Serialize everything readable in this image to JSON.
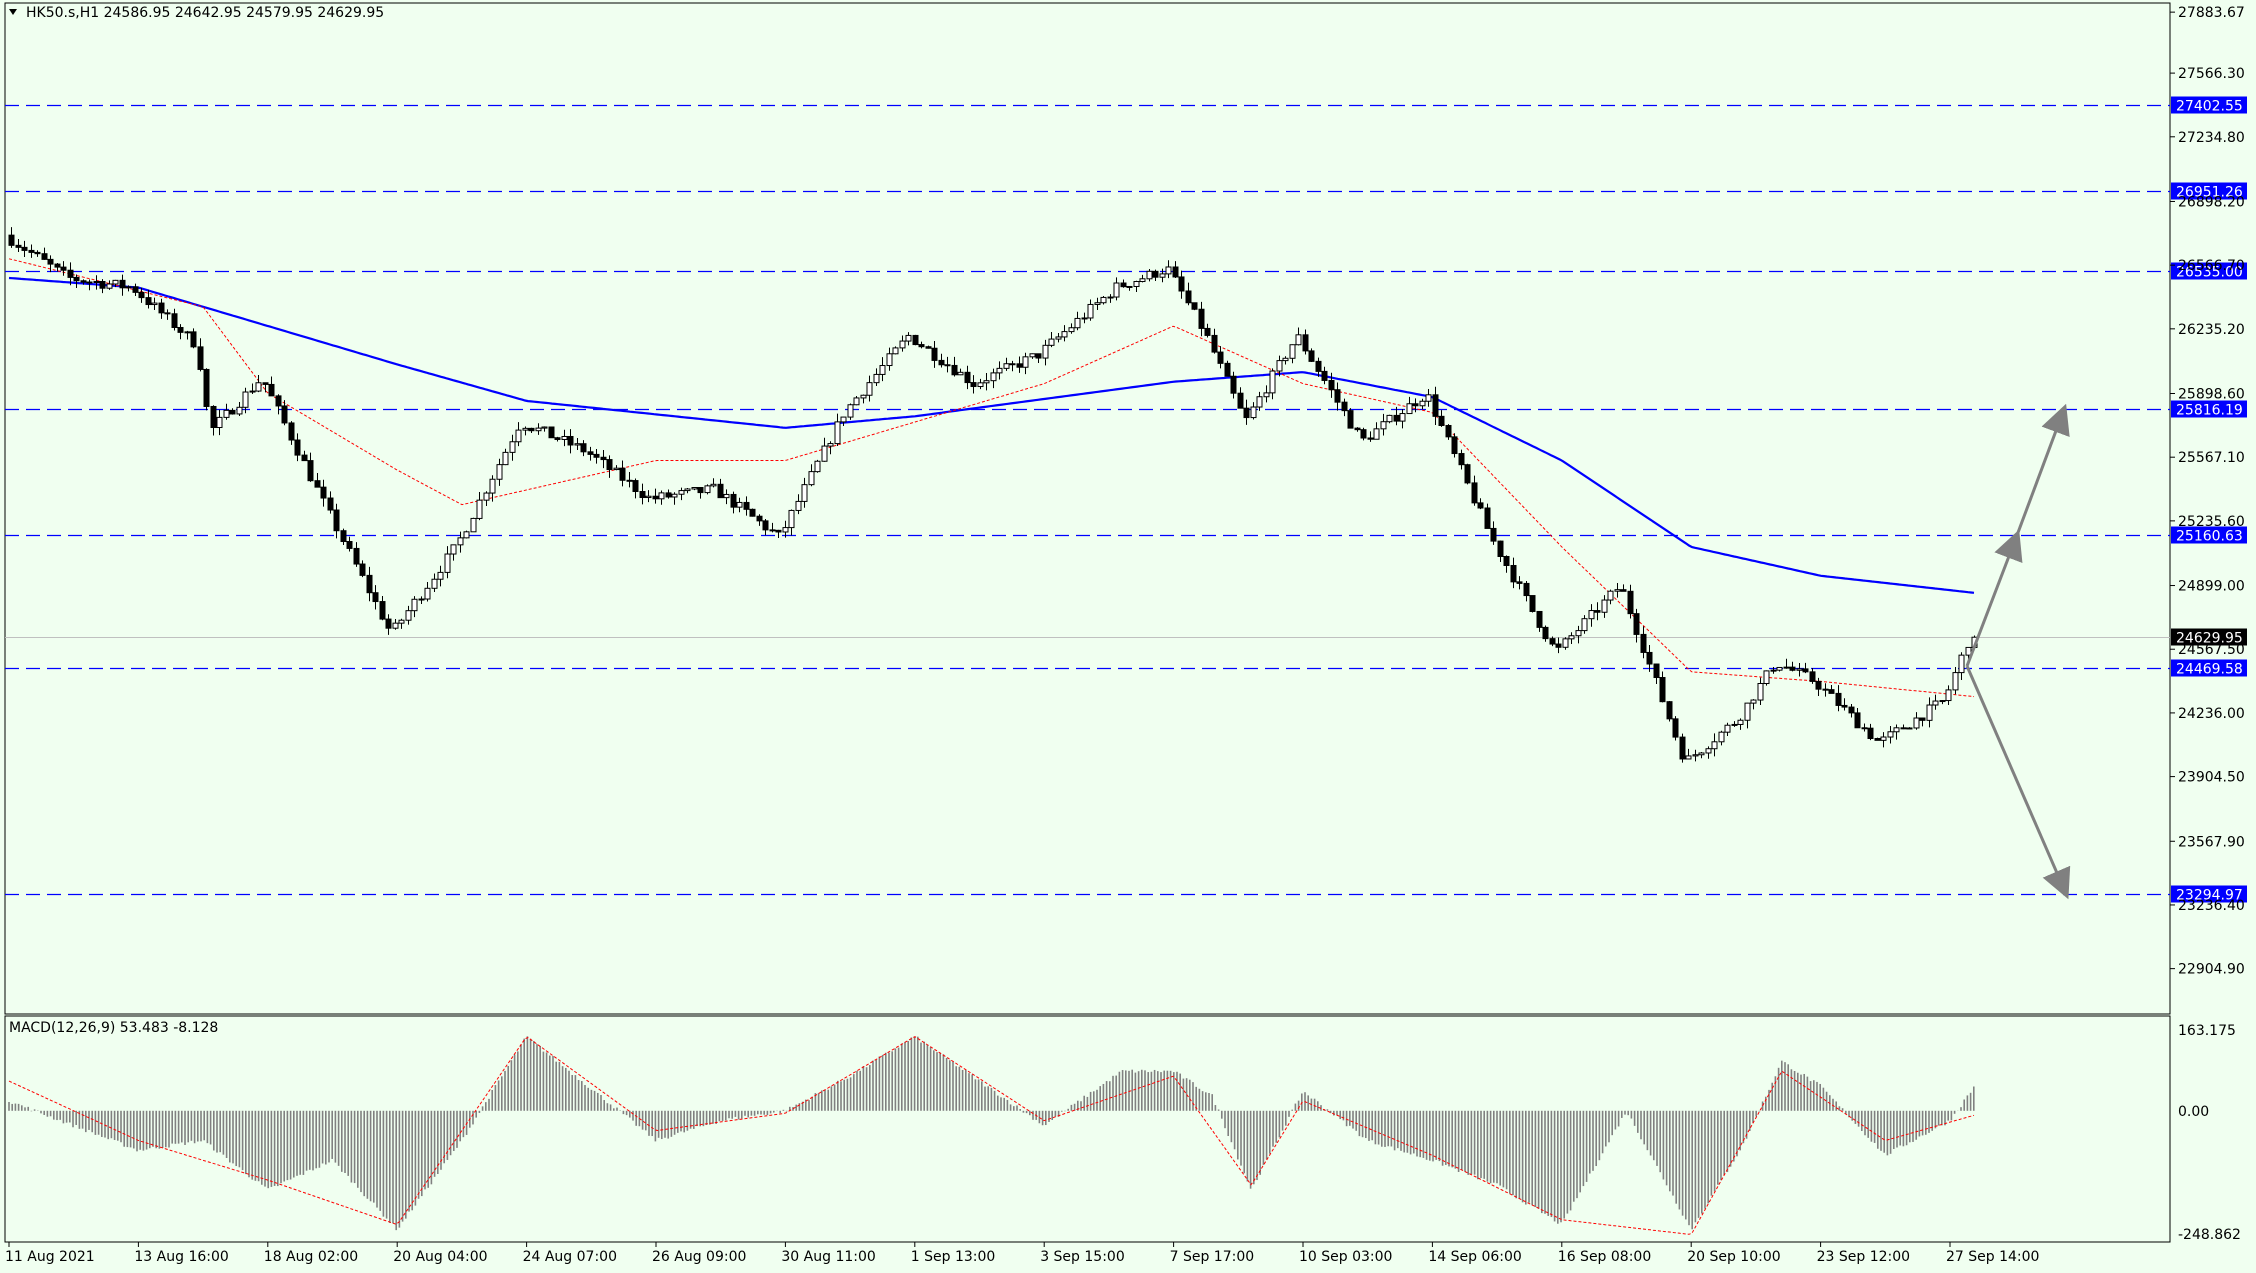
{
  "colors": {
    "background": "#f0fff0",
    "frame": "#000000",
    "grid_level": "#0000ff",
    "ma_slow": "#0000ff",
    "ma_fast": "#ff0000",
    "candle": "#000000",
    "candle_up_fill": "#ffffff",
    "candle_down_fill": "#000000",
    "macd_hist": "#808080",
    "macd_signal": "#ff0000",
    "arrow": "#808080",
    "level_label_bg": "#0000ff",
    "price_label_bg": "#000000"
  },
  "header": {
    "symbol_label": "HK50.s,H1  24586.95 24642.95 24579.95 24629.95",
    "menu_icon": "triangle-down-icon"
  },
  "chart_data": [
    {
      "type": "candlestick",
      "title": "HK50.s,H1  24586.95 24642.95 24579.95 24629.95",
      "symbol": "HK50.s",
      "timeframe": "H1",
      "ohlc_last": {
        "open": 24586.95,
        "high": 24642.95,
        "low": 24579.95,
        "close": 24629.95
      },
      "current_price": 24629.95,
      "y_range": [
        22700,
        27900
      ],
      "y_ticks": [
        "27883.67",
        "27566.30",
        "27234.80",
        "26898.20",
        "26566.70",
        "26235.20",
        "25898.60",
        "25567.10",
        "25235.60",
        "24899.00",
        "24567.50",
        "24236.00",
        "23904.50",
        "23567.90",
        "23236.40",
        "22904.90"
      ],
      "x_ticks": [
        "11 Aug 2021",
        "13 Aug 16:00",
        "18 Aug 02:00",
        "20 Aug 04:00",
        "24 Aug 07:00",
        "26 Aug 09:00",
        "30 Aug 11:00",
        "1 Sep 13:00",
        "3 Sep 15:00",
        "7 Sep 17:00",
        "10 Sep 03:00",
        "14 Sep 06:00",
        "16 Sep 08:00",
        "20 Sep 10:00",
        "23 Sep 12:00",
        "27 Sep 14:00"
      ],
      "levels": [
        "27402.55",
        "26951.26",
        "26535.00",
        "25816.19",
        "25160.63",
        "24469.58",
        "23294.97"
      ],
      "price_path": [
        [
          "11 Aug 2021",
          26730
        ],
        [
          "12 Aug",
          26500
        ],
        [
          "13 Aug 16:00",
          26450
        ],
        [
          "16 Aug",
          26150
        ],
        [
          "17 Aug",
          25700
        ],
        [
          "18 Aug 02:00",
          25980
        ],
        [
          "19 Aug",
          25300
        ],
        [
          "20 Aug 04:00",
          24650
        ],
        [
          "23 Aug",
          25100
        ],
        [
          "24 Aug 07:00",
          25750
        ],
        [
          "25 Aug",
          25600
        ],
        [
          "26 Aug 09:00",
          25350
        ],
        [
          "27 Aug",
          25400
        ],
        [
          "30 Aug 11:00",
          25150
        ],
        [
          "31 Aug",
          25800
        ],
        [
          "1 Sep 13:00",
          26200
        ],
        [
          "2 Sep",
          25950
        ],
        [
          "3 Sep 15:00",
          26100
        ],
        [
          "6 Sep",
          26450
        ],
        [
          "7 Sep 17:00",
          26550
        ],
        [
          "8 Sep",
          26200
        ],
        [
          "9 Sep",
          25750
        ],
        [
          "10 Sep 03:00",
          26200
        ],
        [
          "13 Sep",
          25650
        ],
        [
          "14 Sep 06:00",
          25900
        ],
        [
          "15 Sep",
          25150
        ],
        [
          "16 Sep 08:00",
          24550
        ],
        [
          "17 Sep",
          24900
        ],
        [
          "20 Sep 10:00",
          23980
        ],
        [
          "21 Sep",
          24200
        ],
        [
          "22 Sep",
          24500
        ],
        [
          "23 Sep 12:00",
          24400
        ],
        [
          "24 Sep",
          24080
        ],
        [
          "27 Sep 14:00",
          24300
        ],
        [
          "27 Sep last",
          24629.95
        ]
      ],
      "ma_fast_path": [
        [
          "11 Aug 2021",
          26600
        ],
        [
          "16 Aug",
          26350
        ],
        [
          "18 Aug 02:00",
          25900
        ],
        [
          "20 Aug 04:00",
          25500
        ],
        [
          "23 Aug",
          25320
        ],
        [
          "26 Aug 09:00",
          25550
        ],
        [
          "30 Aug 11:00",
          25550
        ],
        [
          "1 Sep 13:00",
          25750
        ],
        [
          "3 Sep 15:00",
          25950
        ],
        [
          "7 Sep 17:00",
          26250
        ],
        [
          "10 Sep 03:00",
          25950
        ],
        [
          "14 Sep 06:00",
          25800
        ],
        [
          "16 Sep 08:00",
          25100
        ],
        [
          "20 Sep 10:00",
          24450
        ],
        [
          "23 Sep 12:00",
          24400
        ],
        [
          "27 Sep last",
          24320
        ]
      ],
      "ma_slow_path": [
        [
          "11 Aug 2021",
          26500
        ],
        [
          "13 Aug 16:00",
          26450
        ],
        [
          "18 Aug 02:00",
          26250
        ],
        [
          "20 Aug 04:00",
          26050
        ],
        [
          "24 Aug 07:00",
          25860
        ],
        [
          "26 Aug 09:00",
          25790
        ],
        [
          "30 Aug 11:00",
          25720
        ],
        [
          "1 Sep 13:00",
          25780
        ],
        [
          "3 Sep 15:00",
          25870
        ],
        [
          "7 Sep 17:00",
          25960
        ],
        [
          "10 Sep 03:00",
          26010
        ],
        [
          "14 Sep 06:00",
          25880
        ],
        [
          "16 Sep 08:00",
          25550
        ],
        [
          "20 Sep 10:00",
          25100
        ],
        [
          "23 Sep 12:00",
          24950
        ],
        [
          "27 Sep last",
          24860
        ]
      ],
      "projection": {
        "from": [
          "27 Sep last",
          24480
        ],
        "up_targets": [
          25160.63,
          25816.19
        ],
        "down_target": 23294.97
      }
    },
    {
      "type": "bar",
      "title": "MACD(12,26,9) 53.483 -8.128",
      "indicator": "MACD",
      "params": "12,26,9",
      "macd_value": 53.483,
      "signal_value": -8.128,
      "y_range": [
        -248.862,
        163.175
      ],
      "y_ticks": [
        "163.175",
        "0.00",
        "-248.862"
      ],
      "histogram_path": [
        [
          "11 Aug 2021",
          20
        ],
        [
          "13 Aug 16:00",
          -80
        ],
        [
          "16 Aug",
          -60
        ],
        [
          "18 Aug 02:00",
          -160
        ],
        [
          "19 Aug",
          -100
        ],
        [
          "20 Aug 04:00",
          -240
        ],
        [
          "23 Aug",
          -60
        ],
        [
          "24 Aug 07:00",
          150
        ],
        [
          "26 Aug 09:00",
          -60
        ],
        [
          "27 Aug",
          -20
        ],
        [
          "30 Aug 11:00",
          0
        ],
        [
          "31 Aug",
          70
        ],
        [
          "1 Sep 13:00",
          150
        ],
        [
          "3 Sep 15:00",
          -30
        ],
        [
          "6 Sep",
          80
        ],
        [
          "7 Sep 17:00",
          80
        ],
        [
          "8 Sep",
          30
        ],
        [
          "9 Sep",
          -160
        ],
        [
          "10 Sep 03:00",
          40
        ],
        [
          "13 Sep",
          -60
        ],
        [
          "14 Sep 06:00",
          -100
        ],
        [
          "15 Sep",
          -150
        ],
        [
          "16 Sep 08:00",
          -230
        ],
        [
          "17 Sep",
          0
        ],
        [
          "20 Sep 10:00",
          -240
        ],
        [
          "21 Sep",
          -70
        ],
        [
          "22 Sep",
          100
        ],
        [
          "23 Sep 12:00",
          50
        ],
        [
          "24 Sep",
          -90
        ],
        [
          "27 Sep 14:00",
          -20
        ],
        [
          "27 Sep last",
          53.483
        ]
      ],
      "signal_path": [
        [
          "11 Aug 2021",
          60
        ],
        [
          "13 Aug 16:00",
          -60
        ],
        [
          "18 Aug 02:00",
          -140
        ],
        [
          "20 Aug 04:00",
          -230
        ],
        [
          "24 Aug 07:00",
          150
        ],
        [
          "26 Aug 09:00",
          -40
        ],
        [
          "30 Aug 11:00",
          -5
        ],
        [
          "1 Sep 13:00",
          150
        ],
        [
          "3 Sep 15:00",
          -20
        ],
        [
          "7 Sep 17:00",
          70
        ],
        [
          "9 Sep",
          -150
        ],
        [
          "10 Sep 03:00",
          20
        ],
        [
          "14 Sep 06:00",
          -90
        ],
        [
          "16 Sep 08:00",
          -220
        ],
        [
          "20 Sep 10:00",
          -250
        ],
        [
          "22 Sep",
          80
        ],
        [
          "24 Sep",
          -60
        ],
        [
          "27 Sep last",
          -8.128
        ]
      ]
    }
  ]
}
